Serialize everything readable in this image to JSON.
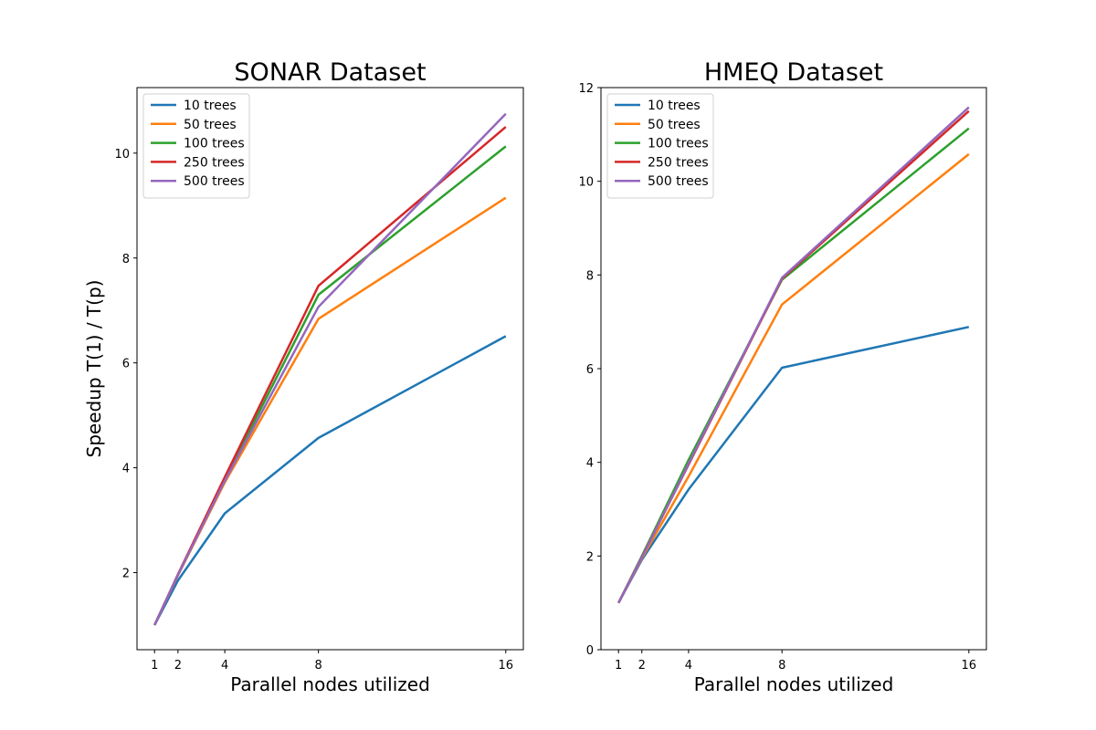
{
  "chart_data": [
    {
      "type": "line",
      "title": "SONAR Dataset",
      "xlabel": "Parallel nodes utilized",
      "ylabel": "Speedup T(1) / T(p)",
      "x": [
        1,
        2,
        4,
        8,
        16
      ],
      "xticks": [
        "1",
        "2",
        "4",
        "8",
        "16"
      ],
      "yticks": [
        "2",
        "4",
        "6",
        "8",
        "10"
      ],
      "xlim": [
        0.25,
        16.75
      ],
      "ylim": [
        0.53,
        11.25
      ],
      "grid": false,
      "legend_position": "upper-left",
      "series": [
        {
          "name": "10 trees",
          "color": "#1f77b4",
          "values": [
            1.0,
            1.85,
            3.13,
            4.57,
            6.51
          ]
        },
        {
          "name": "50 trees",
          "color": "#ff7f0e",
          "values": [
            1.0,
            1.95,
            3.72,
            6.84,
            9.15
          ]
        },
        {
          "name": "100 trees",
          "color": "#2ca02c",
          "values": [
            1.0,
            1.96,
            3.77,
            7.3,
            10.13
          ]
        },
        {
          "name": "250 trees",
          "color": "#d62728",
          "values": [
            1.0,
            1.97,
            3.82,
            7.47,
            10.5
          ]
        },
        {
          "name": "500 trees",
          "color": "#9467bd",
          "values": [
            1.0,
            1.96,
            3.75,
            7.07,
            10.75
          ]
        }
      ]
    },
    {
      "type": "line",
      "title": "HMEQ Dataset",
      "xlabel": "Parallel nodes utilized",
      "ylabel": "",
      "x": [
        1,
        2,
        4,
        8,
        16
      ],
      "xticks": [
        "1",
        "2",
        "4",
        "8",
        "16"
      ],
      "yticks": [
        "0",
        "2",
        "4",
        "6",
        "8",
        "10",
        "12"
      ],
      "xlim": [
        0.25,
        16.75
      ],
      "ylim": [
        0,
        12
      ],
      "grid": false,
      "legend_position": "upper-left",
      "series": [
        {
          "name": "10 trees",
          "color": "#1f77b4",
          "values": [
            1.0,
            1.92,
            3.42,
            6.02,
            6.89
          ]
        },
        {
          "name": "50 trees",
          "color": "#ff7f0e",
          "values": [
            1.0,
            1.95,
            3.7,
            7.37,
            10.58
          ]
        },
        {
          "name": "100 trees",
          "color": "#2ca02c",
          "values": [
            1.0,
            2.0,
            4.05,
            7.9,
            11.13
          ]
        },
        {
          "name": "250 trees",
          "color": "#d62728",
          "values": [
            1.0,
            1.98,
            3.95,
            7.92,
            11.5
          ]
        },
        {
          "name": "500 trees",
          "color": "#9467bd",
          "values": [
            1.0,
            1.97,
            3.97,
            7.94,
            11.58
          ]
        }
      ]
    }
  ]
}
